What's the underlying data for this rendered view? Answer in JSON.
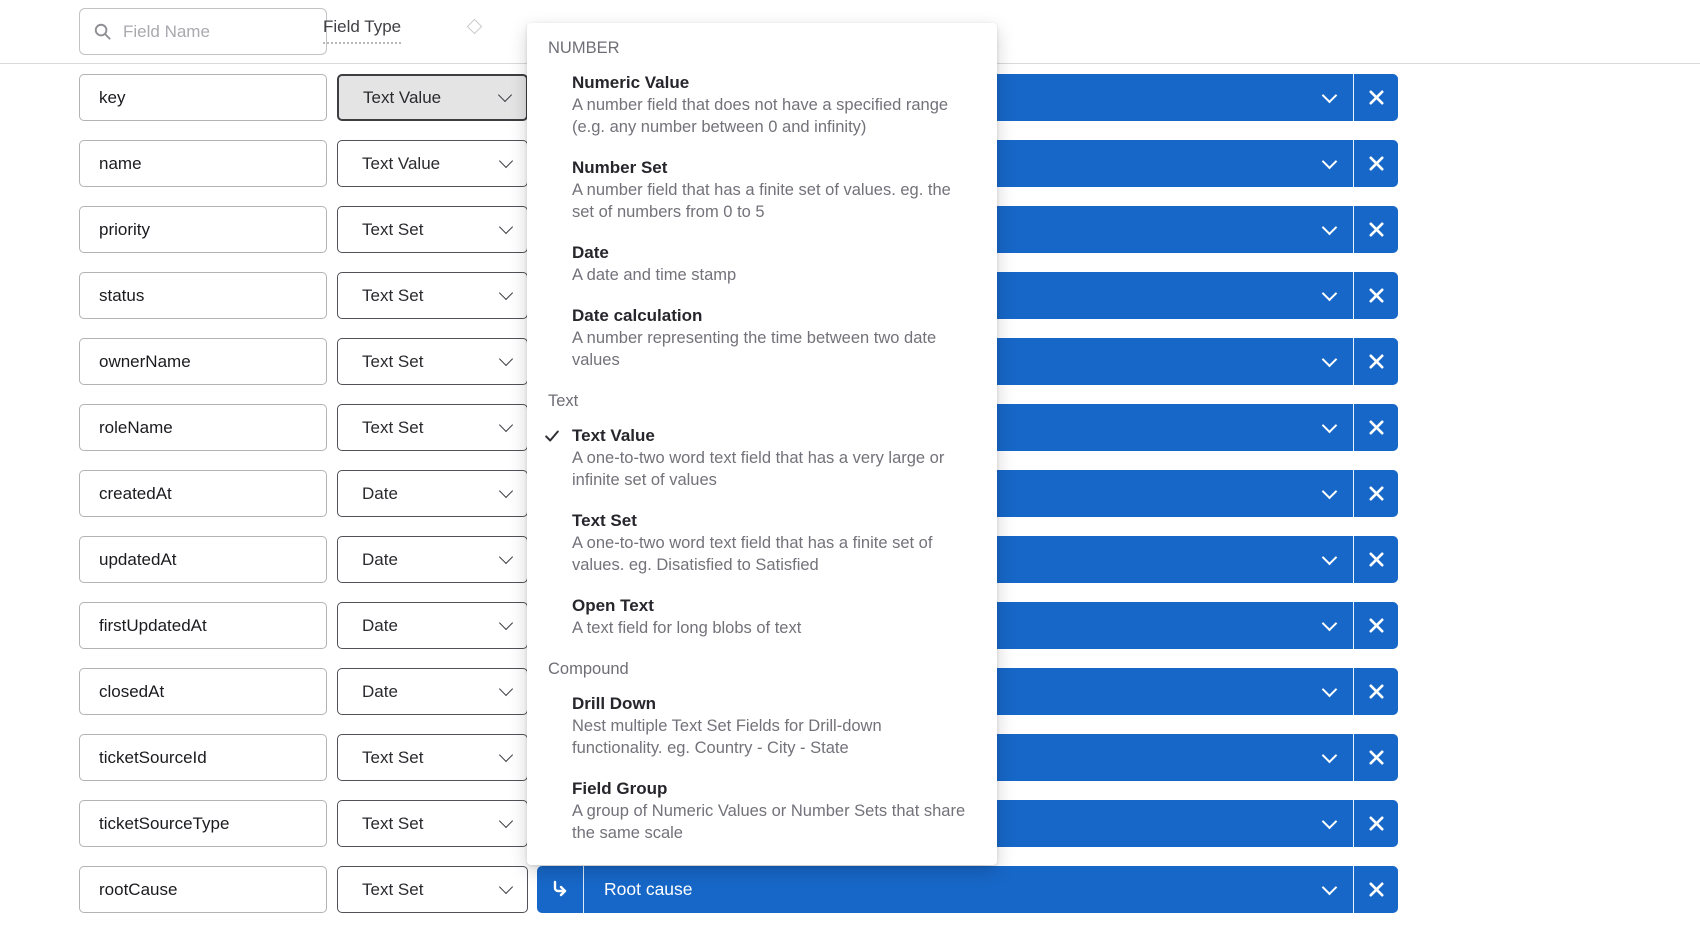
{
  "toolbar": {
    "search_placeholder": "Field Name",
    "field_type_label": "Field Type"
  },
  "rows": [
    {
      "name": "key",
      "type": "Text Value",
      "active": true
    },
    {
      "name": "name",
      "type": "Text Value"
    },
    {
      "name": "priority",
      "type": "Text Set"
    },
    {
      "name": "status",
      "type": "Text Set"
    },
    {
      "name": "ownerName",
      "type": "Text Set"
    },
    {
      "name": "roleName",
      "type": "Text Set"
    },
    {
      "name": "createdAt",
      "type": "Date"
    },
    {
      "name": "updatedAt",
      "type": "Date"
    },
    {
      "name": "firstUpdatedAt",
      "type": "Date"
    },
    {
      "name": "closedAt",
      "type": "Date"
    },
    {
      "name": "ticketSourceId",
      "type": "Text Set"
    },
    {
      "name": "ticketSourceType",
      "type": "Text Set"
    },
    {
      "name": "rootCause",
      "type": "Text Set",
      "mapped_label": "Root cause",
      "has_nest_icon": true
    }
  ],
  "dropdown": {
    "sections": [
      {
        "header": "NUMBER",
        "items": [
          {
            "title": "Numeric Value",
            "desc": "A number field that does not have a specified range (e.g. any number between 0 and infinity)"
          },
          {
            "title": "Number Set",
            "desc": "A number field that has a finite set of values. eg. the set of numbers from 0 to 5"
          },
          {
            "title": "Date",
            "desc": "A date and time stamp"
          },
          {
            "title": "Date calculation",
            "desc": "A number representing the time between two date values"
          }
        ]
      },
      {
        "header": "Text",
        "items": [
          {
            "title": "Text Value",
            "desc": "A one-to-two word text field that has a very large or infinite set of values",
            "checked": true
          },
          {
            "title": "Text Set",
            "desc": "A one-to-two word text field that has a finite set of values. eg. Disatisfied to Satisfied"
          },
          {
            "title": "Open Text",
            "desc": "A text field for long blobs of text"
          }
        ]
      },
      {
        "header": "Compound",
        "items": [
          {
            "title": "Drill Down",
            "desc": "Nest multiple Text Set Fields for Drill-down functionality. eg. Country - City - State"
          },
          {
            "title": "Field Group",
            "desc": "A group of Numeric Values or Number Sets that share the same scale"
          }
        ]
      }
    ]
  },
  "colors": {
    "accent_blue": "#1767c8",
    "divider_gray": "#d9d9d9",
    "text_dark": "#26262c",
    "text_gray": "#72727a"
  }
}
